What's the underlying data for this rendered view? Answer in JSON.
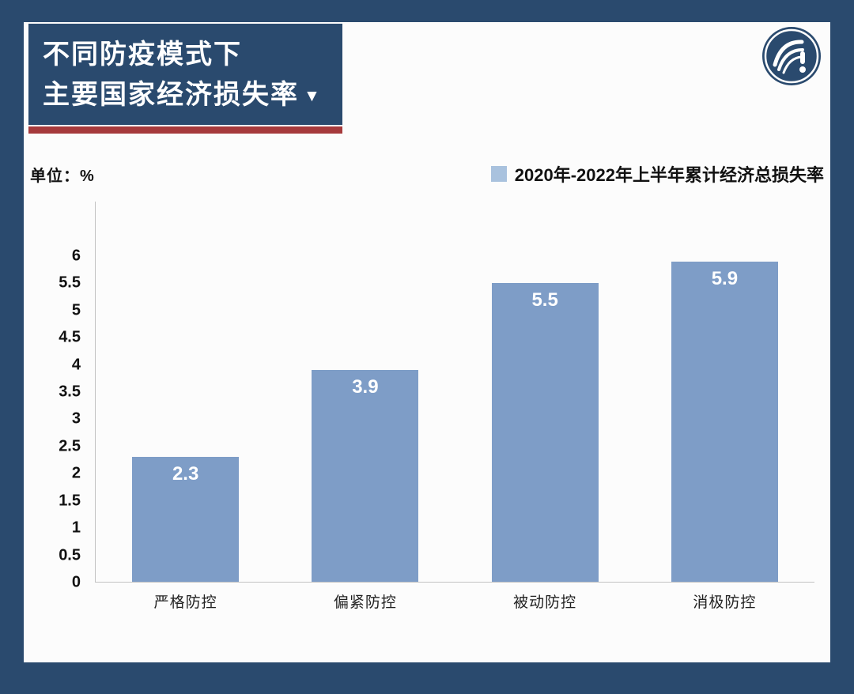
{
  "page": {
    "frame_color": "#2a4a6e",
    "background_color": "#fcfcfc"
  },
  "header": {
    "title_line1": "不同防疫模式下",
    "title_line2": "主要国家经济损失率",
    "title_caret": "▼",
    "accent_color": "#a63a3c",
    "logo_name": "brand-logo"
  },
  "chart_data": {
    "type": "bar",
    "title": "不同防疫模式下主要国家经济损失率",
    "unit_label": "单位：%",
    "legend": "2020年-2022年上半年累计经济总损失率",
    "categories": [
      "严格防控",
      "偏紧防控",
      "被动防控",
      "消极防控"
    ],
    "values": [
      2.3,
      3.9,
      5.5,
      5.9
    ],
    "value_labels": [
      "2.3",
      "3.9",
      "5.5",
      "5.9"
    ],
    "yticks": [
      0,
      0.5,
      1,
      1.5,
      2,
      2.5,
      3,
      3.5,
      4,
      4.5,
      5,
      5.5,
      6
    ],
    "ylim": [
      0,
      7
    ],
    "grid": false,
    "legend_position": "top-right",
    "bar_color": "#7e9dc7",
    "legend_swatch_color": "#a9c2de",
    "value_label_color": "#ffffff"
  }
}
